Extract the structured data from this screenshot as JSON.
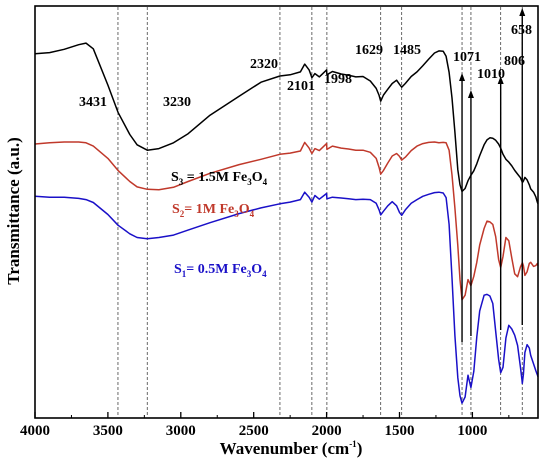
{
  "chart_data": {
    "type": "line",
    "xlabel": {
      "main": "Wavenumber (cm",
      "sup": "-1",
      "tail": ")"
    },
    "ylabel": "Transmittance (a.u.)",
    "xlim": [
      4000,
      550
    ],
    "xticks": [
      "4000",
      "3500",
      "3000",
      "2500",
      "2000",
      "1500",
      "1000"
    ],
    "xtick_values": [
      4000,
      3500,
      3000,
      2500,
      2000,
      1500,
      1000
    ],
    "y_range": [
      0,
      1
    ],
    "y_ticks_shown": false,
    "grid": false,
    "reference_lines": [
      3431,
      3230,
      2320,
      2101,
      1998,
      1629,
      1485,
      1071,
      1010,
      806,
      658
    ],
    "arrows": [
      1071,
      1010,
      806,
      658
    ],
    "peak_labels": [
      {
        "text": "3431",
        "x": 3431
      },
      {
        "text": "3230",
        "x": 3230
      },
      {
        "text": "2320",
        "x": 2320
      },
      {
        "text": "2101",
        "x": 2101
      },
      {
        "text": "1998",
        "x": 1998
      },
      {
        "text": "1629",
        "x": 1629
      },
      {
        "text": "1485",
        "x": 1485
      },
      {
        "text": "1071",
        "x": 1071
      },
      {
        "text": "1010",
        "x": 1010
      },
      {
        "text": "806",
        "x": 806
      },
      {
        "text": "658",
        "x": 658
      }
    ],
    "series": [
      {
        "name": "S3 = 1.5M Fe3O4",
        "label": {
          "s": "S",
          "s_sub": "3",
          "mid": " = 1.5M Fe",
          "fe_sub": "3",
          "o": "O",
          "o_sub": "4"
        },
        "color": "#000000",
        "x": [
          4000,
          3900,
          3800,
          3700,
          3650,
          3600,
          3500,
          3431,
          3350,
          3300,
          3230,
          3150,
          3050,
          2950,
          2800,
          2600,
          2450,
          2320,
          2250,
          2180,
          2150,
          2120,
          2101,
          2080,
          2050,
          2000,
          1998,
          1960,
          1900,
          1850,
          1800,
          1750,
          1700,
          1660,
          1640,
          1629,
          1610,
          1580,
          1550,
          1520,
          1500,
          1485,
          1460,
          1420,
          1380,
          1340,
          1300,
          1260,
          1230,
          1200,
          1180,
          1160,
          1140,
          1120,
          1100,
          1085,
          1071,
          1050,
          1030,
          1010,
          990,
          970,
          950,
          920,
          900,
          880,
          860,
          840,
          820,
          806,
          790,
          770,
          750,
          730,
          710,
          690,
          670,
          660,
          658,
          650,
          640,
          625,
          610,
          600,
          580,
          565,
          555,
          550
        ],
        "y": [
          0.884,
          0.887,
          0.895,
          0.906,
          0.91,
          0.896,
          0.808,
          0.742,
          0.688,
          0.663,
          0.65,
          0.654,
          0.668,
          0.69,
          0.735,
          0.781,
          0.815,
          0.83,
          0.833,
          0.84,
          0.859,
          0.845,
          0.826,
          0.836,
          0.828,
          0.845,
          0.833,
          0.841,
          0.835,
          0.832,
          0.828,
          0.829,
          0.818,
          0.8,
          0.783,
          0.769,
          0.784,
          0.798,
          0.812,
          0.82,
          0.81,
          0.803,
          0.812,
          0.829,
          0.84,
          0.855,
          0.871,
          0.886,
          0.891,
          0.89,
          0.878,
          0.839,
          0.777,
          0.694,
          0.603,
          0.566,
          0.55,
          0.557,
          0.576,
          0.589,
          0.6,
          0.617,
          0.637,
          0.663,
          0.675,
          0.68,
          0.679,
          0.674,
          0.665,
          0.655,
          0.64,
          0.628,
          0.621,
          0.612,
          0.601,
          0.592,
          0.583,
          0.574,
          0.571,
          0.575,
          0.584,
          0.578,
          0.566,
          0.556,
          0.548,
          0.537,
          0.524,
          0.52
        ]
      },
      {
        "name": "S2 = 1M Fe3O4",
        "label": {
          "s": "S",
          "s_sub": "2",
          "mid": "= 1M Fe",
          "fe_sub": "3",
          "o": "O",
          "o_sub": "4"
        },
        "color": "#c0392b",
        "x": [
          4000,
          3900,
          3800,
          3700,
          3650,
          3600,
          3500,
          3431,
          3350,
          3300,
          3230,
          3150,
          3050,
          2950,
          2800,
          2600,
          2450,
          2320,
          2250,
          2180,
          2150,
          2120,
          2101,
          2080,
          2050,
          2000,
          1998,
          1960,
          1900,
          1850,
          1800,
          1750,
          1700,
          1660,
          1640,
          1629,
          1610,
          1580,
          1550,
          1520,
          1500,
          1485,
          1460,
          1420,
          1380,
          1340,
          1300,
          1260,
          1230,
          1200,
          1180,
          1160,
          1140,
          1120,
          1100,
          1085,
          1071,
          1050,
          1030,
          1010,
          990,
          970,
          950,
          920,
          900,
          880,
          860,
          840,
          820,
          806,
          790,
          770,
          750,
          730,
          710,
          690,
          670,
          660,
          658,
          650,
          640,
          625,
          610,
          600,
          580,
          565,
          555,
          550
        ],
        "y": [
          0.665,
          0.668,
          0.67,
          0.67,
          0.668,
          0.66,
          0.63,
          0.601,
          0.574,
          0.561,
          0.555,
          0.554,
          0.56,
          0.574,
          0.594,
          0.615,
          0.628,
          0.64,
          0.643,
          0.648,
          0.669,
          0.655,
          0.642,
          0.654,
          0.649,
          0.666,
          0.652,
          0.66,
          0.655,
          0.653,
          0.65,
          0.65,
          0.645,
          0.63,
          0.608,
          0.592,
          0.601,
          0.619,
          0.636,
          0.642,
          0.635,
          0.626,
          0.633,
          0.649,
          0.66,
          0.666,
          0.669,
          0.67,
          0.668,
          0.669,
          0.668,
          0.65,
          0.59,
          0.51,
          0.419,
          0.336,
          0.287,
          0.298,
          0.336,
          0.321,
          0.344,
          0.378,
          0.42,
          0.46,
          0.478,
          0.476,
          0.47,
          0.44,
          0.385,
          0.365,
          0.392,
          0.438,
          0.43,
          0.388,
          0.35,
          0.343,
          0.367,
          0.375,
          0.378,
          0.37,
          0.346,
          0.355,
          0.375,
          0.378,
          0.368,
          0.37,
          0.375,
          0.37
        ]
      },
      {
        "name": "S1 = 0.5M Fe3O4",
        "label": {
          "s": "S",
          "s_sub": "1",
          "mid": "= 0.5M Fe",
          "fe_sub": "3",
          "o": "O",
          "o_sub": "4"
        },
        "color": "#1a10c8",
        "x": [
          4000,
          3900,
          3800,
          3700,
          3650,
          3600,
          3500,
          3431,
          3350,
          3300,
          3230,
          3150,
          3050,
          2950,
          2800,
          2600,
          2450,
          2320,
          2250,
          2180,
          2150,
          2120,
          2101,
          2080,
          2050,
          2000,
          1998,
          1960,
          1900,
          1850,
          1800,
          1750,
          1700,
          1660,
          1640,
          1629,
          1610,
          1580,
          1550,
          1520,
          1500,
          1485,
          1460,
          1420,
          1380,
          1340,
          1300,
          1260,
          1230,
          1200,
          1180,
          1160,
          1140,
          1120,
          1100,
          1085,
          1071,
          1050,
          1030,
          1010,
          990,
          970,
          950,
          920,
          900,
          880,
          860,
          840,
          820,
          806,
          790,
          770,
          750,
          730,
          710,
          690,
          670,
          660,
          658,
          650,
          640,
          625,
          610,
          600,
          580,
          565,
          555,
          550
        ],
        "y": [
          0.538,
          0.536,
          0.536,
          0.533,
          0.53,
          0.523,
          0.494,
          0.468,
          0.447,
          0.438,
          0.435,
          0.438,
          0.444,
          0.456,
          0.474,
          0.496,
          0.51,
          0.52,
          0.524,
          0.53,
          0.548,
          0.536,
          0.524,
          0.54,
          0.531,
          0.545,
          0.532,
          0.536,
          0.534,
          0.532,
          0.53,
          0.531,
          0.53,
          0.521,
          0.505,
          0.493,
          0.502,
          0.515,
          0.525,
          0.515,
          0.499,
          0.492,
          0.505,
          0.521,
          0.53,
          0.538,
          0.543,
          0.547,
          0.548,
          0.546,
          0.535,
          0.47,
          0.34,
          0.2,
          0.098,
          0.054,
          0.036,
          0.051,
          0.104,
          0.074,
          0.113,
          0.197,
          0.26,
          0.298,
          0.3,
          0.296,
          0.278,
          0.21,
          0.143,
          0.11,
          0.123,
          0.194,
          0.225,
          0.216,
          0.201,
          0.176,
          0.122,
          0.092,
          0.084,
          0.106,
          0.159,
          0.178,
          0.17,
          0.152,
          0.131,
          0.115,
          0.105,
          0.1
        ]
      }
    ]
  }
}
